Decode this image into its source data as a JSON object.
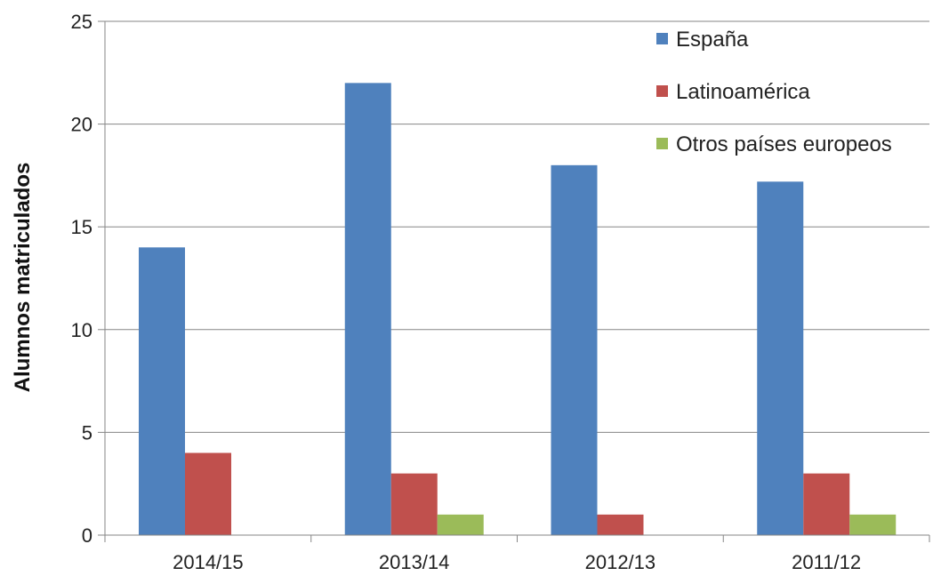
{
  "chart_data": {
    "type": "bar",
    "title": "",
    "xlabel": "",
    "ylabel": "Alumnos matriculados",
    "ylim": [
      0,
      25
    ],
    "yticks": [
      0,
      5,
      10,
      15,
      20,
      25
    ],
    "grid": true,
    "legend_position": "top-right",
    "categories": [
      "2014/15",
      "2013/14",
      "2012/13",
      "2011/12"
    ],
    "series": [
      {
        "name": "España",
        "values": [
          14,
          22,
          18,
          17.2
        ],
        "color": "#4F81BD"
      },
      {
        "name": "Latinoamérica",
        "values": [
          4,
          3,
          1,
          3
        ],
        "color": "#C0504D"
      },
      {
        "name": "Otros países europeos",
        "values": [
          0,
          1,
          0,
          1
        ],
        "color": "#9BBB59"
      }
    ]
  }
}
